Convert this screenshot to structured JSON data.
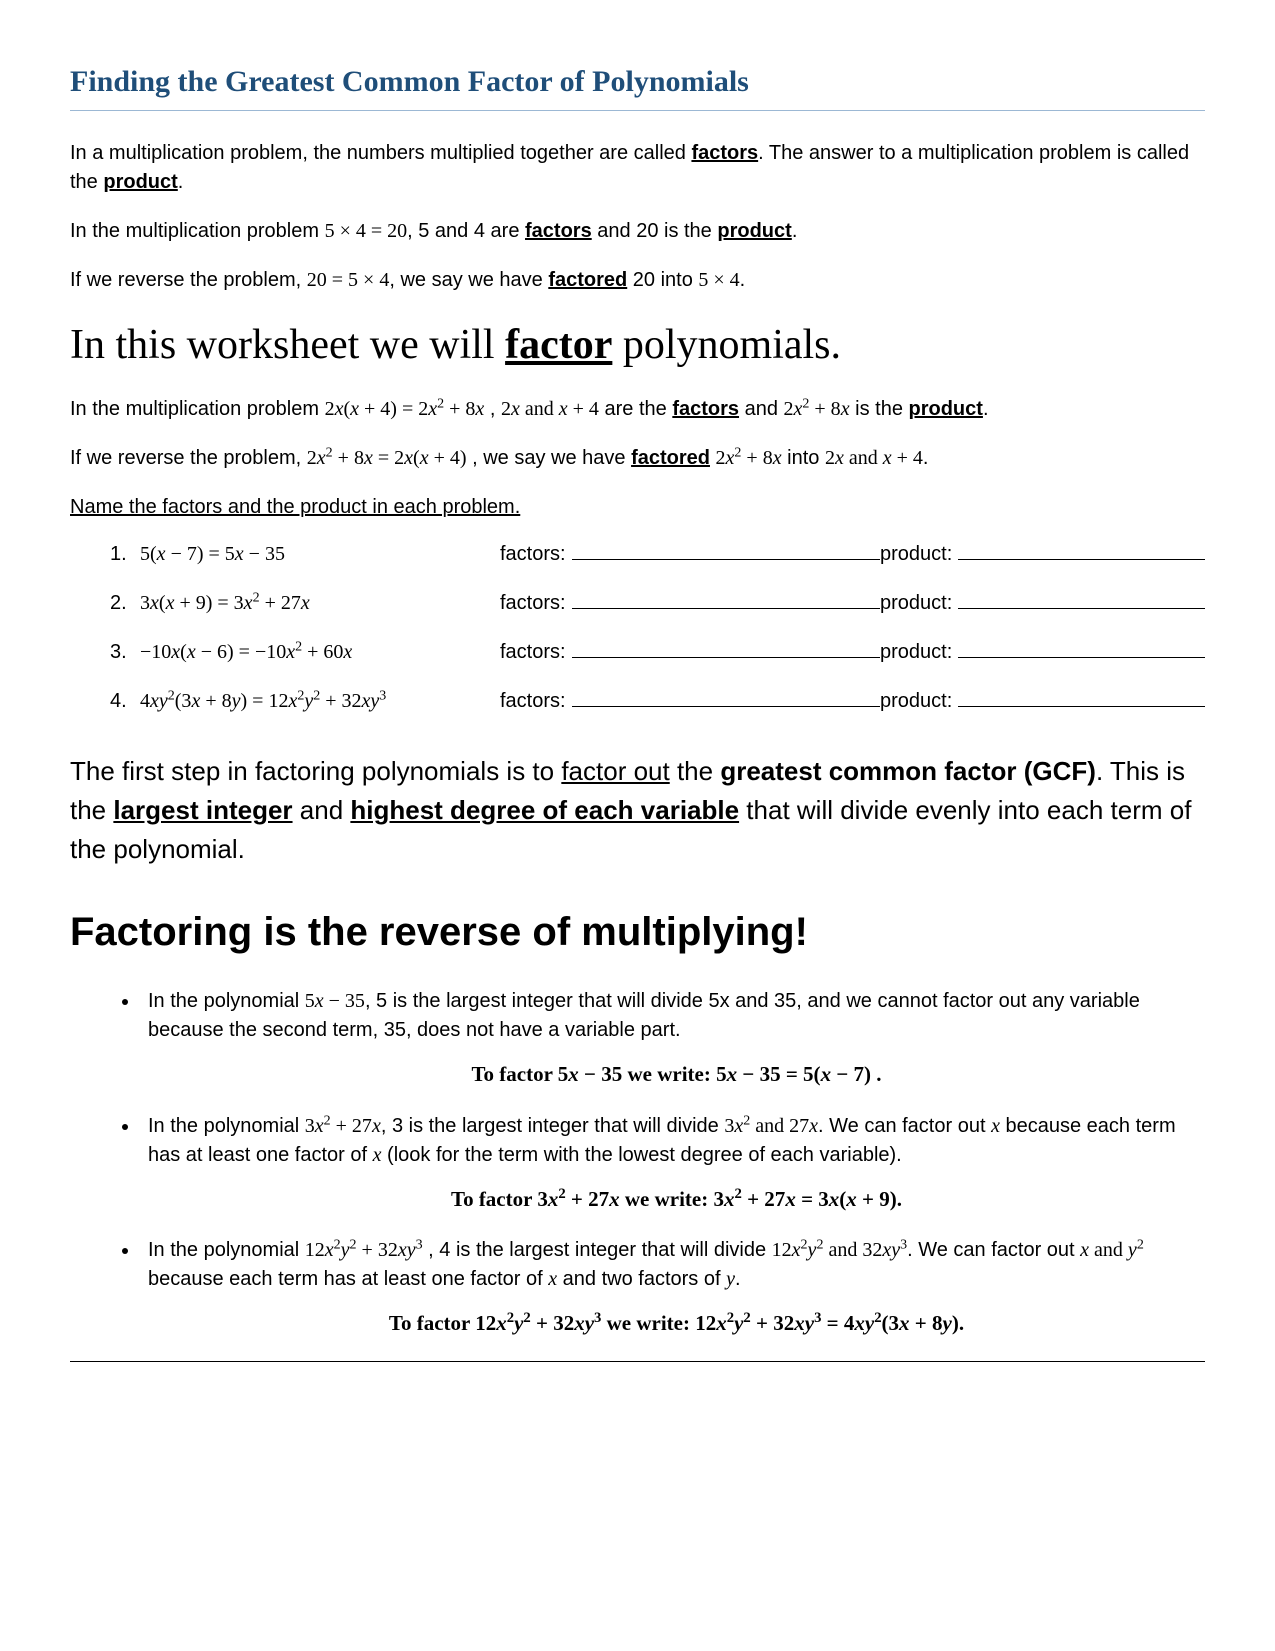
{
  "title": "Finding the Greatest Common Factor of Polynomials",
  "intro": {
    "p1a": "In a multiplication problem, the numbers multiplied together are called ",
    "p1b": "factors",
    "p1c": ".  The answer to a multiplication problem is called the ",
    "p1d": "product",
    "p1e": ".",
    "p2a": "In the multiplication problem  ",
    "p2eq": "5 × 4 = 20",
    "p2b": ", 5 and 4 are ",
    "p2c": "factors",
    "p2d": " and 20 is the ",
    "p2e": "product",
    "p2f": ".",
    "p3a": "If we reverse the problem, ",
    "p3eq": "20 = 5 × 4",
    "p3b": ", we say we have ",
    "p3c": "factored",
    "p3d": " 20 into ",
    "p3eq2": "5 × 4",
    "p3e": "."
  },
  "bigheading": {
    "a": "In this worksheet we will ",
    "b": "factor",
    "c": " polynomials."
  },
  "poly_intro": {
    "p1a": "In the multiplication problem  ",
    "p1b": " , ",
    "p1c": " are the ",
    "p1d": "factors",
    "p1e": " and ",
    "p1f": " is the ",
    "p1g": "product",
    "p1h": ".",
    "p2a": "If we reverse the problem,  ",
    "p2b": " , we say we have ",
    "p2c": "factored",
    "p2d": " into  ",
    "p2e": "."
  },
  "exercise_heading": "Name the factors and the product in each problem.",
  "factors_label": "factors:",
  "product_label": "product:",
  "exercises": [
    {
      "num": "1."
    },
    {
      "num": "2."
    },
    {
      "num": "3."
    },
    {
      "num": "4."
    }
  ],
  "gcf": {
    "a": "The first step in factoring polynomials is to ",
    "b": "factor out",
    "c": " the ",
    "d": "greatest common factor (GCF)",
    "e": ".  This is the ",
    "f": "largest integer",
    "g": " and ",
    "h": "highest degree of each variable",
    "i": " that will divide evenly into each term of the polynomial."
  },
  "reverse_heading": "Factoring is the reverse of multiplying!",
  "bullets": {
    "b1a": "In the polynomial ",
    "b1b": ", 5 is the largest integer that will divide 5x and 35, and we cannot factor out any variable because the second term, 35, does not have a variable part.",
    "t1a": "To factor ",
    "t1b": " we write:    ",
    "t1c": " .",
    "b2a": "In the polynomial  ",
    "b2b": ", 3 is the largest integer that will divide ",
    "b2c": ".  We can factor out ",
    "b2d": " because each term has at least one factor of ",
    "b2e": " (look for the term with the lowest degree of each variable).",
    "t2a": "To factor ",
    "t2b": " we write:   ",
    "t2c": ".",
    "b3a": "In the polynomial ",
    "b3b": " , 4 is the largest integer that will divide  ",
    "b3c": ".  We can factor out ",
    "b3d": " because each term has at least one factor of ",
    "b3e": " and two factors of ",
    "b3f": ".",
    "t3a": "To factor ",
    "t3b": " we write:  ",
    "t3c": "."
  }
}
